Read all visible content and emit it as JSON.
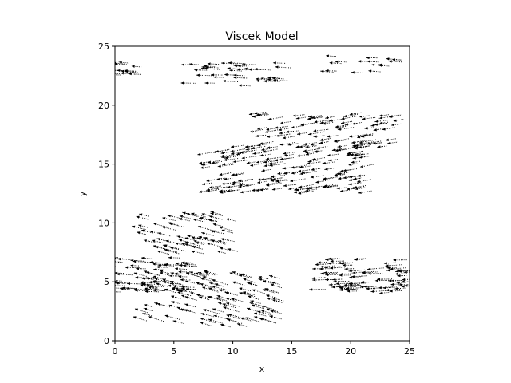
{
  "chart_data": {
    "type": "quiver",
    "title": "Viscek Model",
    "xlabel": "x",
    "ylabel": "y",
    "xlim": [
      0,
      25
    ],
    "ylim": [
      0,
      25
    ],
    "grid": false,
    "xticks": [
      0,
      5,
      10,
      15,
      20,
      25
    ],
    "yticks": [
      0,
      5,
      10,
      15,
      20,
      25
    ],
    "arrow_color": "#000000",
    "clusters": [
      {
        "cx": 1.2,
        "cy": 23.0,
        "w": 3.0,
        "h": 1.2,
        "dx": -1.0,
        "dy": 0.08,
        "n": 14
      },
      {
        "cx": 10.5,
        "cy": 22.6,
        "w": 9.0,
        "h": 2.0,
        "dx": -1.0,
        "dy": 0.05,
        "n": 40
      },
      {
        "cx": 21.5,
        "cy": 23.4,
        "w": 6.0,
        "h": 1.5,
        "dx": -1.0,
        "dy": 0.05,
        "n": 16
      },
      {
        "cx": 18.5,
        "cy": 18.0,
        "w": 12.0,
        "h": 3.0,
        "dx": -1.0,
        "dy": -0.15,
        "n": 90
      },
      {
        "cx": 15.0,
        "cy": 14.7,
        "w": 14.0,
        "h": 4.0,
        "dx": -1.0,
        "dy": -0.15,
        "n": 170
      },
      {
        "cx": 6.5,
        "cy": 9.0,
        "w": 8.0,
        "h": 3.5,
        "dx": -1.0,
        "dy": 0.25,
        "n": 70
      },
      {
        "cx": 3.5,
        "cy": 5.6,
        "w": 7.0,
        "h": 3.0,
        "dx": -1.0,
        "dy": 0.05,
        "n": 70
      },
      {
        "cx": 8.5,
        "cy": 3.4,
        "w": 12.0,
        "h": 4.5,
        "dx": -1.0,
        "dy": 0.28,
        "n": 130
      },
      {
        "cx": 21.5,
        "cy": 5.6,
        "w": 8.0,
        "h": 3.0,
        "dx": -1.0,
        "dy": -0.05,
        "n": 90
      }
    ]
  }
}
